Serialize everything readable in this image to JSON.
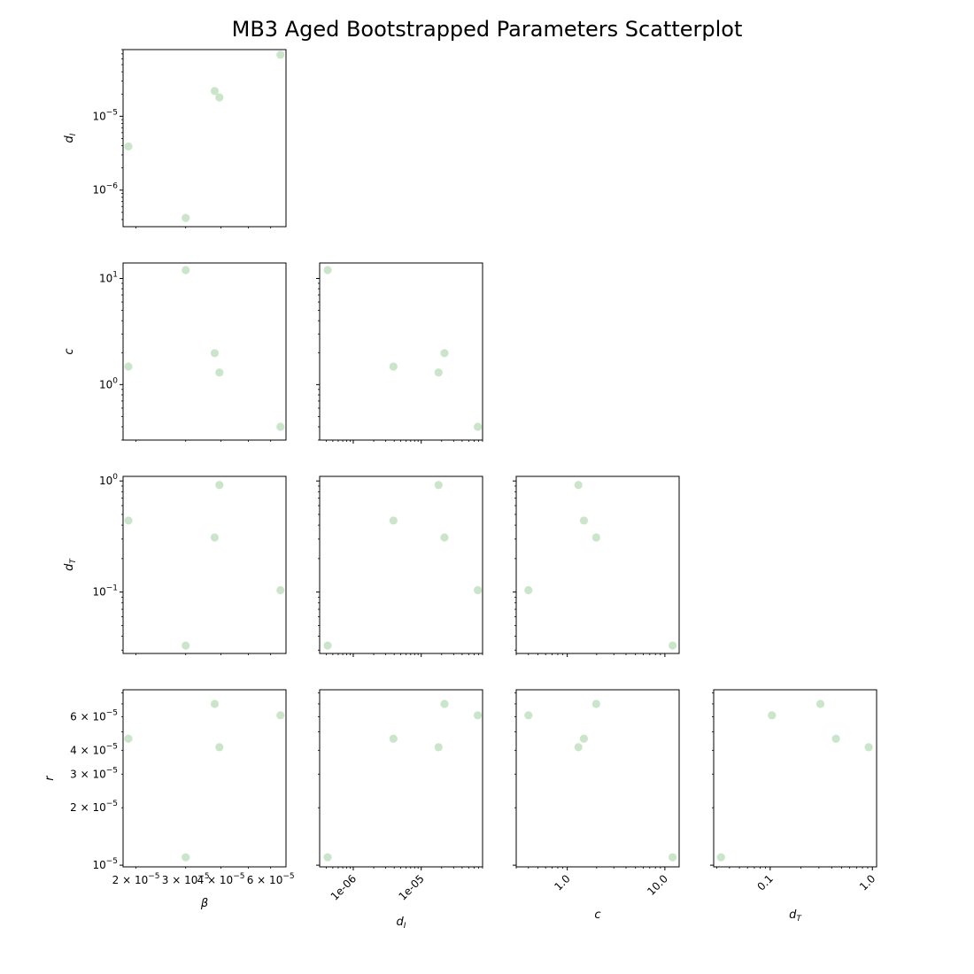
{
  "title": "MB3 Aged Bootstrapped Parameters Scatterplot",
  "point_color": "#a9d3a6",
  "chart_data": {
    "type": "scatter",
    "layout": "lower-triangular pair plot",
    "title": "MB3 Aged Bootstrapped Parameters Scatterplot",
    "scale": "log",
    "grid": false,
    "variables": [
      {
        "key": "beta",
        "label": "β",
        "lim": [
          1.8e-05,
          6.8e-05
        ]
      },
      {
        "key": "dI",
        "label": "dI",
        "sub": "I",
        "lim": [
          3.2e-07,
          8e-05
        ]
      },
      {
        "key": "c",
        "label": "c",
        "lim": [
          0.3,
          14
        ]
      },
      {
        "key": "dT",
        "label": "dT",
        "sub": "T",
        "lim": [
          0.028,
          1.1
        ]
      },
      {
        "key": "r",
        "label": "r",
        "lim": [
          9.8e-06,
          8.3e-05
        ]
      }
    ],
    "points": [
      {
        "beta": 1.88e-05,
        "dI": 3.9e-06,
        "c": 1.48,
        "dT": 0.44,
        "r": 4.6e-05
      },
      {
        "beta": 3e-05,
        "dI": 4.2e-07,
        "c": 12.0,
        "dT": 0.033,
        "r": 1.1e-05
      },
      {
        "beta": 3.8e-05,
        "dI": 2.2e-05,
        "c": 1.98,
        "dT": 0.31,
        "r": 7e-05
      },
      {
        "beta": 3.95e-05,
        "dI": 1.8e-05,
        "c": 1.3,
        "dT": 0.92,
        "r": 4.15e-05
      },
      {
        "beta": 6.5e-05,
        "dI": 6.8e-05,
        "c": 0.4,
        "dT": 0.104,
        "r": 6.1e-05
      }
    ],
    "panels": [
      {
        "x": "beta",
        "y": "dI",
        "yticks": [
          {
            "v": 1e-06,
            "t": "10",
            "e": "−6"
          },
          {
            "v": 1e-05,
            "t": "10",
            "e": "−5"
          }
        ]
      },
      {
        "x": "beta",
        "y": "c",
        "yticks": [
          {
            "v": 1,
            "t": "10",
            "e": "0"
          },
          {
            "v": 10,
            "t": "10",
            "e": "1"
          }
        ]
      },
      {
        "x": "dI",
        "y": "c"
      },
      {
        "x": "beta",
        "y": "dT",
        "yticks": [
          {
            "v": 0.1,
            "t": "10",
            "e": "−1"
          },
          {
            "v": 1,
            "t": "10",
            "e": "0"
          }
        ]
      },
      {
        "x": "dI",
        "y": "dT"
      },
      {
        "x": "c",
        "y": "dT"
      },
      {
        "x": "beta",
        "y": "r",
        "yticks": [
          {
            "v": 1e-05,
            "t": "10",
            "e": "−5",
            "pre": ""
          },
          {
            "v": 2e-05,
            "t": "2 × 10",
            "e": "−5"
          },
          {
            "v": 3e-05,
            "t": "3 × 10",
            "e": "−5"
          },
          {
            "v": 4e-05,
            "t": "4 × 10",
            "e": "−5"
          },
          {
            "v": 6e-05,
            "t": "6 × 10",
            "e": "−5"
          }
        ]
      },
      {
        "x": "dI",
        "y": "r"
      },
      {
        "x": "c",
        "y": "r"
      },
      {
        "x": "dT",
        "y": "r"
      }
    ],
    "bottom_xticks": {
      "beta": [
        {
          "v": 2e-05,
          "t": "2 × 10",
          "e": "−5"
        },
        {
          "v": 3e-05,
          "t": "3 × 10",
          "e": "−5"
        },
        {
          "v": 4e-05,
          "t": "4 × 10",
          "e": "−5"
        },
        {
          "v": 6e-05,
          "t": "6 × 10",
          "e": "−5"
        }
      ],
      "dI": [
        {
          "v": 1e-06,
          "t": "1e-06"
        },
        {
          "v": 1e-05,
          "t": "1e-05"
        }
      ],
      "c": [
        {
          "v": 1,
          "t": "1.0"
        },
        {
          "v": 10,
          "t": "10.0"
        }
      ],
      "dT": [
        {
          "v": 0.1,
          "t": "0.1"
        },
        {
          "v": 1,
          "t": "1.0"
        }
      ]
    }
  }
}
